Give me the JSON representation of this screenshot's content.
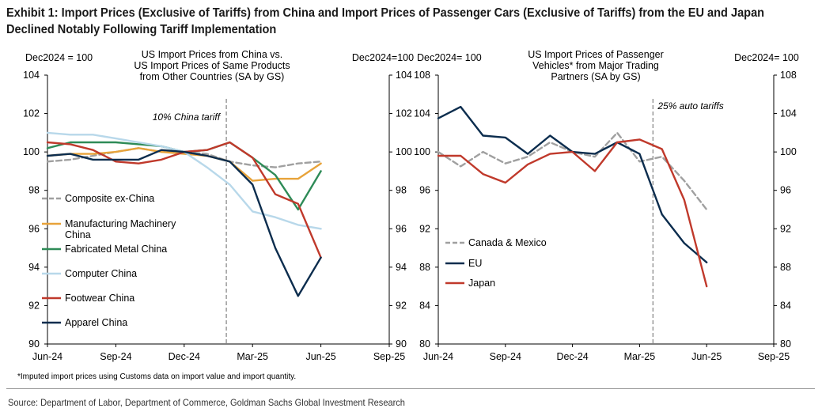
{
  "exhibit": {
    "title": "Exhibit 1: Import Prices (Exclusive of Tariffs) from China and Import Prices of Passenger Cars (Exclusive of Tariffs) from the EU and Japan Declined Notably Following Tariff Implementation",
    "footnote": "*Imputed import prices using Customs data on import value and import quantity.",
    "source": "Source: Department of Labor, Department of Commerce, Goldman Sachs Global Investment Research"
  },
  "chart_data": [
    {
      "type": "line",
      "title_lines": [
        "US Import Prices from China vs.",
        "US Import Prices of Same Products",
        "from Other Countries (SA by GS)"
      ],
      "left_axis_label": "Dec2024 = 100",
      "right_axis_label": "Dec2024=100",
      "ylim": [
        90,
        104
      ],
      "y_ticks": [
        90,
        92,
        94,
        96,
        98,
        100,
        102,
        104
      ],
      "x_ticks": [
        "Jun-24",
        "Sep-24",
        "Dec-24",
        "Mar-25",
        "Jun-25",
        "Sep-25"
      ],
      "xlim": [
        0,
        15
      ],
      "annotation": {
        "label": "10% China tariff",
        "x": 7.85
      },
      "legend_position": "left",
      "grid": false,
      "series": [
        {
          "name": "Composite ex-China",
          "color": "#a0a0a0",
          "dashed": true,
          "x": [
            0,
            1,
            2,
            3,
            4,
            5,
            6,
            7,
            8,
            9,
            10,
            11,
            12
          ],
          "y": [
            99.5,
            99.6,
            99.8,
            100.0,
            100.2,
            100.0,
            100.0,
            99.9,
            99.5,
            99.3,
            99.2,
            99.4,
            99.5
          ]
        },
        {
          "name": "Manufacturing Machinery China",
          "color": "#e8a33a",
          "dashed": false,
          "x": [
            0,
            1,
            2,
            3,
            4,
            5,
            6,
            7,
            8,
            9,
            10,
            11,
            12
          ],
          "y": [
            99.8,
            99.9,
            99.9,
            100.0,
            100.2,
            100.0,
            99.9,
            99.8,
            99.5,
            98.5,
            98.6,
            98.6,
            99.4
          ]
        },
        {
          "name": "Fabricated Metal China",
          "color": "#2e8b57",
          "dashed": false,
          "x": [
            0,
            1,
            2,
            3,
            4,
            5,
            6,
            7,
            8,
            9,
            10,
            11,
            12
          ],
          "y": [
            100.2,
            100.5,
            100.5,
            100.5,
            100.4,
            100.3,
            100.0,
            100.1,
            100.5,
            99.7,
            98.8,
            97.0,
            99.0
          ]
        },
        {
          "name": "Computer China",
          "color": "#b8d8ea",
          "dashed": false,
          "x": [
            0,
            1,
            2,
            3,
            4,
            5,
            6,
            7,
            8,
            9,
            10,
            11,
            12
          ],
          "y": [
            101.0,
            100.9,
            100.9,
            100.7,
            100.5,
            100.3,
            100.0,
            99.2,
            98.3,
            96.9,
            96.6,
            96.2,
            96.0
          ]
        },
        {
          "name": "Footwear China",
          "color": "#c0392b",
          "dashed": false,
          "x": [
            0,
            1,
            2,
            3,
            4,
            5,
            6,
            7,
            8,
            9,
            10,
            11,
            12
          ],
          "y": [
            100.5,
            100.4,
            100.1,
            99.5,
            99.4,
            99.6,
            100.0,
            100.1,
            100.5,
            99.7,
            97.8,
            97.3,
            94.5
          ]
        },
        {
          "name": "Apparel China",
          "color": "#0c2d4e",
          "dashed": false,
          "x": [
            0,
            1,
            2,
            3,
            4,
            5,
            6,
            7,
            8,
            9,
            10,
            11,
            12
          ],
          "y": [
            99.8,
            99.9,
            99.6,
            99.6,
            99.6,
            100.1,
            100.0,
            99.8,
            99.5,
            98.3,
            95.0,
            92.5,
            94.5
          ]
        }
      ]
    },
    {
      "type": "line",
      "title_lines": [
        "US Import Prices of Passenger",
        "Vehicles* from Major Trading",
        "Partners (SA by GS)"
      ],
      "left_axis_label": "Dec2024= 100",
      "right_axis_label": "Dec2024= 100",
      "ylim": [
        80,
        108
      ],
      "y_ticks": [
        80,
        84,
        88,
        92,
        96,
        100,
        104,
        108
      ],
      "x_ticks": [
        "Jun-24",
        "Sep-24",
        "Dec-24",
        "Mar-25",
        "Jun-25",
        "Sep-25"
      ],
      "xlim": [
        0,
        15
      ],
      "annotation": {
        "label": "25% auto tariffs",
        "x": 9.6
      },
      "legend_position": "bottom-left",
      "grid": false,
      "series": [
        {
          "name": "Canada & Mexico",
          "color": "#a0a0a0",
          "dashed": true,
          "x": [
            0,
            1,
            2,
            3,
            4,
            5,
            6,
            7,
            8,
            9,
            10,
            11,
            12
          ],
          "y": [
            100.0,
            98.5,
            100.0,
            98.8,
            99.5,
            101.0,
            100.0,
            99.5,
            102.0,
            99.0,
            99.5,
            97.0,
            94.0
          ]
        },
        {
          "name": "EU",
          "color": "#0c2d4e",
          "dashed": false,
          "x": [
            0,
            1,
            2,
            3,
            4,
            5,
            6,
            7,
            8,
            9,
            10,
            11,
            12
          ],
          "y": [
            103.5,
            104.7,
            101.7,
            101.5,
            99.8,
            101.7,
            100.0,
            99.8,
            101.0,
            99.8,
            93.5,
            90.5,
            88.5
          ]
        },
        {
          "name": "Japan",
          "color": "#c0392b",
          "dashed": false,
          "x": [
            0,
            1,
            2,
            3,
            4,
            5,
            6,
            7,
            8,
            9,
            10,
            11,
            12
          ],
          "y": [
            99.6,
            99.6,
            97.7,
            96.8,
            98.7,
            99.8,
            100.0,
            98.0,
            101.0,
            101.3,
            100.3,
            95.0,
            86.0
          ]
        }
      ]
    }
  ]
}
